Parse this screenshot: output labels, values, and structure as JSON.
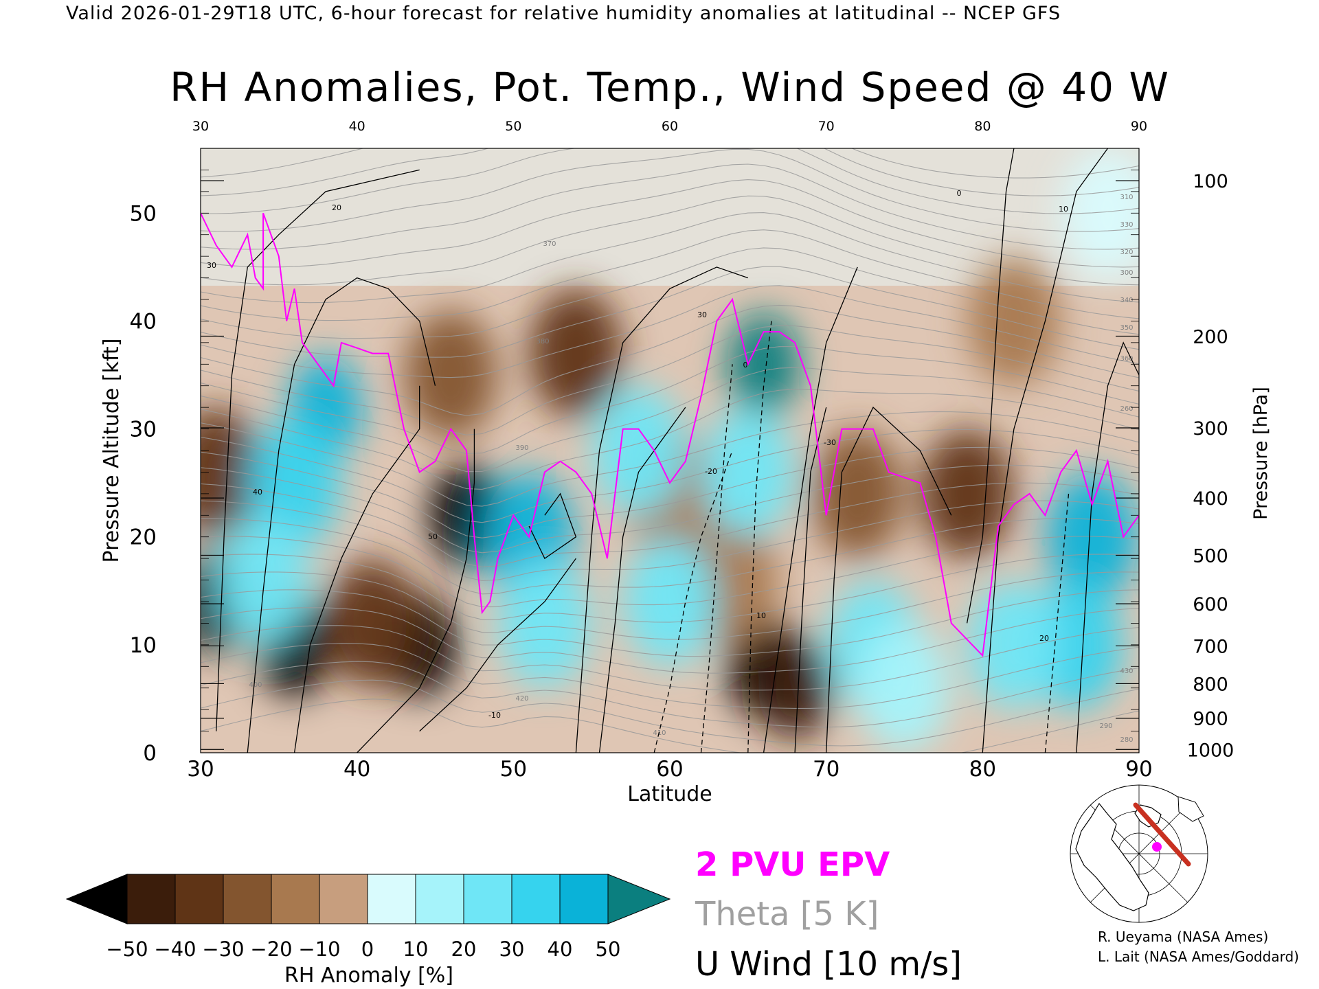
{
  "header": {
    "text": "Valid 2026-01-29T18 UTC, 6-hour forecast for relative humidity anomalies at latitudinal -- NCEP GFS"
  },
  "chart_data": {
    "type": "heatmap",
    "title": "RH Anomalies, Pot. Temp., Wind Speed @ 40 W",
    "xlabel": "Latitude",
    "ylabel": "Pressure Altitude [kft]",
    "ylabel_right": "Pressure [hPa]",
    "xlim": [
      30,
      90
    ],
    "ylim": [
      0,
      56
    ],
    "x_ticks": [
      "30",
      "40",
      "50",
      "60",
      "70",
      "80",
      "90"
    ],
    "top_ticks": [
      "30",
      "40",
      "50",
      "60",
      "70",
      "80",
      "90"
    ],
    "y_ticks": [
      "0",
      "10",
      "20",
      "30",
      "40",
      "50"
    ],
    "pressure_ticks": [
      {
        "label": "100",
        "kft": 53.0
      },
      {
        "label": "200",
        "kft": 38.6
      },
      {
        "label": "300",
        "kft": 30.1
      },
      {
        "label": "400",
        "kft": 23.6
      },
      {
        "label": "500",
        "kft": 18.3
      },
      {
        "label": "600",
        "kft": 13.8
      },
      {
        "label": "700",
        "kft": 9.9
      },
      {
        "label": "800",
        "kft": 6.4
      },
      {
        "label": "900",
        "kft": 3.2
      },
      {
        "label": "1000",
        "kft": 0.3
      }
    ],
    "colorbar": {
      "label": "RH Anomaly [%]",
      "tick_labels": [
        "-50",
        "-40",
        "-30",
        "-20",
        "-10",
        "0",
        "10",
        "20",
        "30",
        "40",
        "50"
      ],
      "colors": [
        "#000000",
        "#3b1d0b",
        "#5f3416",
        "#83552f",
        "#a8794f",
        "#c79e7e",
        "#e9d6c8",
        "#d9fbfd",
        "#a6f3fa",
        "#6fe6f6",
        "#36d3ee",
        "#0ab2d8",
        "#0a8ea6",
        "#0b7f7f"
      ],
      "extends": "both"
    },
    "legend": {
      "epv": "2 PVU EPV",
      "theta": "Theta [5 K]",
      "uwind": "U Wind [10 m/s]",
      "epv_color": "#ff00ff",
      "theta_color": "#a0a0a0",
      "uwind_color": "#000000"
    },
    "anomaly_features": [
      {
        "lat": 31,
        "kft": 14,
        "value": -50
      },
      {
        "lat": 31,
        "kft": 26,
        "value": -38
      },
      {
        "lat": 36,
        "kft": 10,
        "value": -55
      },
      {
        "lat": 44,
        "kft": 10,
        "value": -58
      },
      {
        "lat": 41,
        "kft": 12,
        "value": -35
      },
      {
        "lat": 47,
        "kft": 22,
        "value": -55
      },
      {
        "lat": 46,
        "kft": 35,
        "value": -28
      },
      {
        "lat": 54,
        "kft": 37,
        "value": -32
      },
      {
        "lat": 66,
        "kft": 8,
        "value": -55
      },
      {
        "lat": 68,
        "kft": 6,
        "value": -48
      },
      {
        "lat": 60,
        "kft": 24,
        "value": -18
      },
      {
        "lat": 64,
        "kft": 16,
        "value": -20
      },
      {
        "lat": 79,
        "kft": 24,
        "value": -38
      },
      {
        "lat": 72,
        "kft": 24,
        "value": -25
      },
      {
        "lat": 82,
        "kft": 40,
        "value": -15
      },
      {
        "lat": 38,
        "kft": 32,
        "value": 48
      },
      {
        "lat": 36,
        "kft": 25,
        "value": 35
      },
      {
        "lat": 34,
        "kft": 16,
        "value": 25
      },
      {
        "lat": 51,
        "kft": 20,
        "value": 40
      },
      {
        "lat": 52,
        "kft": 12,
        "value": 22
      },
      {
        "lat": 58,
        "kft": 28,
        "value": 28
      },
      {
        "lat": 60,
        "kft": 14,
        "value": 22
      },
      {
        "lat": 66,
        "kft": 36,
        "value": 62
      },
      {
        "lat": 65,
        "kft": 26,
        "value": 28
      },
      {
        "lat": 73,
        "kft": 10,
        "value": 25
      },
      {
        "lat": 75,
        "kft": 6,
        "value": 15
      },
      {
        "lat": 87,
        "kft": 20,
        "value": 45
      },
      {
        "lat": 86,
        "kft": 10,
        "value": 35
      },
      {
        "lat": 82,
        "kft": 10,
        "value": 25
      },
      {
        "lat": 88,
        "kft": 50,
        "value": 8
      }
    ],
    "theta_contour_labels": [
      "300",
      "310",
      "320",
      "330",
      "340",
      "350",
      "360",
      "370",
      "380",
      "390",
      "400",
      "410",
      "420",
      "430",
      "280",
      "290",
      "260"
    ],
    "uwind_contour_labels": [
      "0",
      "10",
      "20",
      "30",
      "40",
      "50",
      "-10",
      "-20",
      "-30"
    ],
    "epv_2pvu_line": [
      [
        30,
        50
      ],
      [
        31,
        47
      ],
      [
        32,
        45
      ],
      [
        33,
        48
      ],
      [
        33.5,
        44
      ],
      [
        34,
        43
      ],
      [
        34,
        50
      ],
      [
        35,
        46
      ],
      [
        35.5,
        40
      ],
      [
        36,
        43
      ],
      [
        36.5,
        38
      ],
      [
        37.5,
        36
      ],
      [
        38.5,
        34
      ],
      [
        39,
        38
      ],
      [
        40,
        37.5
      ],
      [
        41,
        37
      ],
      [
        42,
        37
      ],
      [
        43,
        30
      ],
      [
        44,
        26
      ],
      [
        45,
        27
      ],
      [
        46,
        30
      ],
      [
        47,
        28
      ],
      [
        47.5,
        20
      ],
      [
        48,
        13
      ],
      [
        48.5,
        14
      ],
      [
        49,
        18
      ],
      [
        50,
        22
      ],
      [
        51,
        20
      ],
      [
        52,
        26
      ],
      [
        53,
        27
      ],
      [
        54,
        26
      ],
      [
        55,
        24
      ],
      [
        56,
        18
      ],
      [
        57,
        30
      ],
      [
        58,
        30
      ],
      [
        59,
        28
      ],
      [
        60,
        25
      ],
      [
        61,
        27
      ],
      [
        62,
        33
      ],
      [
        63,
        40
      ],
      [
        64,
        42
      ],
      [
        65,
        36
      ],
      [
        66,
        39
      ],
      [
        67,
        39
      ],
      [
        68,
        38
      ],
      [
        69,
        34
      ],
      [
        70,
        22
      ],
      [
        71,
        30
      ],
      [
        73,
        30
      ],
      [
        74,
        26
      ],
      [
        76,
        25
      ],
      [
        77,
        20
      ],
      [
        78,
        12
      ],
      [
        80,
        9
      ],
      [
        81,
        21
      ],
      [
        82,
        23
      ],
      [
        83,
        24
      ],
      [
        84,
        22
      ],
      [
        85,
        26
      ],
      [
        86,
        28
      ],
      [
        87,
        23
      ],
      [
        88,
        27
      ],
      [
        89,
        20
      ],
      [
        90,
        22
      ]
    ]
  },
  "credits": {
    "line1": "R. Ueyama (NASA Ames)",
    "line2": "L. Lait (NASA Ames/Goddard)"
  },
  "inset_map": {
    "track_color": "#c83020",
    "marker_color": "#ff00ff"
  }
}
